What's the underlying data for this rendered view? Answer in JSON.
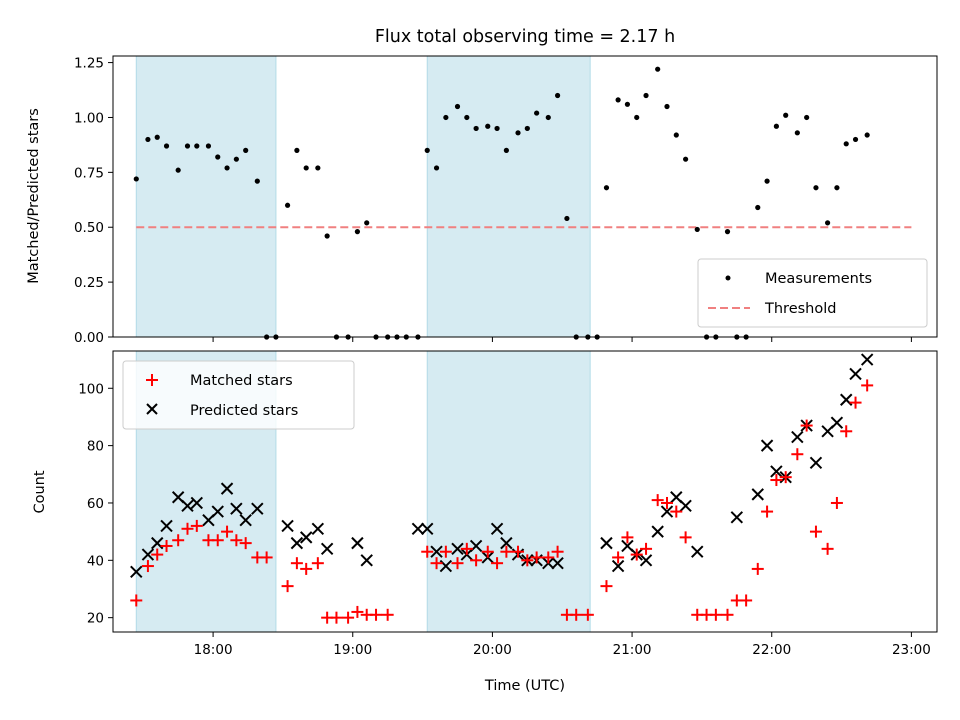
{
  "chart_data": [
    {
      "type": "scatter",
      "title": "Flux total observing time = 2.17 h",
      "xlabel": "",
      "ylabel": "Matched/Predicted stars",
      "xlim": [
        "17:17",
        "23:11"
      ],
      "ylim": [
        0,
        1.28
      ],
      "x_ticks": [
        "18:00",
        "19:00",
        "20:00",
        "21:00",
        "22:00",
        "23:00"
      ],
      "y_ticks": [
        "0.00",
        "0.25",
        "0.50",
        "0.75",
        "1.00",
        "1.25"
      ],
      "y_tick_values": [
        0,
        0.25,
        0.5,
        0.75,
        1.0,
        1.25
      ],
      "shaded_intervals": [
        [
          "17:27",
          "18:27"
        ],
        [
          "19:32",
          "20:42"
        ]
      ],
      "legend": {
        "position": "lower right",
        "entries": [
          "Measurements",
          "Threshold"
        ]
      },
      "series": [
        {
          "name": "Measurements",
          "marker": "point",
          "color": "#000000",
          "points": [
            [
              "17:27",
              0.72
            ],
            [
              "17:32",
              0.9
            ],
            [
              "17:36",
              0.91
            ],
            [
              "17:40",
              0.87
            ],
            [
              "17:45",
              0.76
            ],
            [
              "17:49",
              0.87
            ],
            [
              "17:53",
              0.87
            ],
            [
              "17:58",
              0.87
            ],
            [
              "18:02",
              0.82
            ],
            [
              "18:06",
              0.77
            ],
            [
              "18:10",
              0.81
            ],
            [
              "18:14",
              0.85
            ],
            [
              "18:19",
              0.71
            ],
            [
              "18:23",
              0.0
            ],
            [
              "18:27",
              0.0
            ],
            [
              "18:32",
              0.6
            ],
            [
              "18:36",
              0.85
            ],
            [
              "18:40",
              0.77
            ],
            [
              "18:45",
              0.77
            ],
            [
              "18:49",
              0.46
            ],
            [
              "18:53",
              0.0
            ],
            [
              "18:58",
              0.0
            ],
            [
              "19:02",
              0.48
            ],
            [
              "19:06",
              0.52
            ],
            [
              "19:10",
              0.0
            ],
            [
              "19:15",
              0.0
            ],
            [
              "19:19",
              0.0
            ],
            [
              "19:23",
              0.0
            ],
            [
              "19:28",
              0.0
            ],
            [
              "19:32",
              0.85
            ],
            [
              "19:36",
              0.77
            ],
            [
              "19:40",
              1.0
            ],
            [
              "19:45",
              1.05
            ],
            [
              "19:49",
              1.0
            ],
            [
              "19:53",
              0.95
            ],
            [
              "19:58",
              0.96
            ],
            [
              "20:02",
              0.95
            ],
            [
              "20:06",
              0.85
            ],
            [
              "20:11",
              0.93
            ],
            [
              "20:15",
              0.95
            ],
            [
              "20:19",
              1.02
            ],
            [
              "20:24",
              1.0
            ],
            [
              "20:28",
              1.1
            ],
            [
              "20:32",
              0.54
            ],
            [
              "20:36",
              0.0
            ],
            [
              "20:41",
              0.0
            ],
            [
              "20:45",
              0.0
            ],
            [
              "20:49",
              0.68
            ],
            [
              "20:54",
              1.08
            ],
            [
              "20:58",
              1.06
            ],
            [
              "21:02",
              1.0
            ],
            [
              "21:06",
              1.1
            ],
            [
              "21:11",
              1.22
            ],
            [
              "21:15",
              1.05
            ],
            [
              "21:19",
              0.92
            ],
            [
              "21:23",
              0.81
            ],
            [
              "21:28",
              0.49
            ],
            [
              "21:32",
              0.0
            ],
            [
              "21:36",
              0.0
            ],
            [
              "21:41",
              0.48
            ],
            [
              "21:45",
              0.0
            ],
            [
              "21:49",
              0.0
            ],
            [
              "21:54",
              0.59
            ],
            [
              "21:58",
              0.71
            ],
            [
              "22:02",
              0.96
            ],
            [
              "22:06",
              1.01
            ],
            [
              "22:11",
              0.93
            ],
            [
              "22:15",
              1.0
            ],
            [
              "22:19",
              0.68
            ],
            [
              "22:24",
              0.52
            ],
            [
              "22:28",
              0.68
            ],
            [
              "22:32",
              0.88
            ],
            [
              "22:36",
              0.9
            ],
            [
              "22:41",
              0.92
            ]
          ]
        },
        {
          "name": "Threshold",
          "marker": "dashed-line",
          "color": "#f08080",
          "points": [
            [
              "17:27",
              0.5
            ],
            [
              "23:00",
              0.5
            ]
          ]
        }
      ]
    },
    {
      "type": "scatter",
      "title": "",
      "xlabel": "Time (UTC)",
      "ylabel": "Count",
      "xlim": [
        "17:17",
        "23:11"
      ],
      "ylim": [
        15,
        113
      ],
      "x_ticks": [
        "18:00",
        "19:00",
        "20:00",
        "21:00",
        "22:00",
        "23:00"
      ],
      "y_ticks": [
        "20",
        "40",
        "60",
        "80",
        "100"
      ],
      "y_tick_values": [
        20,
        40,
        60,
        80,
        100
      ],
      "shaded_intervals": [
        [
          "17:27",
          "18:27"
        ],
        [
          "19:32",
          "20:42"
        ]
      ],
      "legend": {
        "position": "upper left",
        "entries": [
          "Matched stars",
          "Predicted stars"
        ]
      },
      "series": [
        {
          "name": "Matched stars",
          "marker": "plus",
          "color": "#ff0000",
          "points": [
            [
              "17:27",
              26
            ],
            [
              "17:32",
              38
            ],
            [
              "17:36",
              42
            ],
            [
              "17:40",
              45
            ],
            [
              "17:45",
              47
            ],
            [
              "17:49",
              51
            ],
            [
              "17:53",
              52
            ],
            [
              "17:58",
              47
            ],
            [
              "18:02",
              47
            ],
            [
              "18:06",
              50
            ],
            [
              "18:10",
              47
            ],
            [
              "18:14",
              46
            ],
            [
              "18:19",
              41
            ],
            [
              "18:23",
              41
            ],
            [
              "18:32",
              31
            ],
            [
              "18:36",
              39
            ],
            [
              "18:40",
              37
            ],
            [
              "18:45",
              39
            ],
            [
              "18:49",
              20
            ],
            [
              "18:53",
              20
            ],
            [
              "18:58",
              20
            ],
            [
              "19:02",
              22
            ],
            [
              "19:06",
              21
            ],
            [
              "19:10",
              21
            ],
            [
              "19:15",
              21
            ],
            [
              "19:32",
              43
            ],
            [
              "19:36",
              39
            ],
            [
              "19:40",
              43
            ],
            [
              "19:45",
              39
            ],
            [
              "19:49",
              44
            ],
            [
              "19:53",
              40
            ],
            [
              "19:58",
              43
            ],
            [
              "20:02",
              39
            ],
            [
              "20:06",
              43
            ],
            [
              "20:11",
              43
            ],
            [
              "20:15",
              40
            ],
            [
              "20:19",
              41
            ],
            [
              "20:24",
              41
            ],
            [
              "20:28",
              43
            ],
            [
              "20:32",
              21
            ],
            [
              "20:36",
              21
            ],
            [
              "20:41",
              21
            ],
            [
              "20:49",
              31
            ],
            [
              "20:54",
              41
            ],
            [
              "20:58",
              48
            ],
            [
              "21:02",
              42
            ],
            [
              "21:06",
              44
            ],
            [
              "21:11",
              61
            ],
            [
              "21:15",
              60
            ],
            [
              "21:19",
              57
            ],
            [
              "21:23",
              48
            ],
            [
              "21:28",
              21
            ],
            [
              "21:32",
              21
            ],
            [
              "21:36",
              21
            ],
            [
              "21:41",
              21
            ],
            [
              "21:45",
              26
            ],
            [
              "21:49",
              26
            ],
            [
              "21:54",
              37
            ],
            [
              "21:58",
              57
            ],
            [
              "22:02",
              68
            ],
            [
              "22:06",
              69
            ],
            [
              "22:11",
              77
            ],
            [
              "22:15",
              87
            ],
            [
              "22:19",
              50
            ],
            [
              "22:24",
              44
            ],
            [
              "22:28",
              60
            ],
            [
              "22:32",
              85
            ],
            [
              "22:36",
              95
            ],
            [
              "22:41",
              101
            ]
          ]
        },
        {
          "name": "Predicted stars",
          "marker": "x",
          "color": "#000000",
          "points": [
            [
              "17:27",
              36
            ],
            [
              "17:32",
              42
            ],
            [
              "17:36",
              46
            ],
            [
              "17:40",
              52
            ],
            [
              "17:45",
              62
            ],
            [
              "17:49",
              59
            ],
            [
              "17:53",
              60
            ],
            [
              "17:58",
              54
            ],
            [
              "18:02",
              57
            ],
            [
              "18:06",
              65
            ],
            [
              "18:10",
              58
            ],
            [
              "18:14",
              54
            ],
            [
              "18:19",
              58
            ],
            [
              "18:32",
              52
            ],
            [
              "18:36",
              46
            ],
            [
              "18:40",
              48
            ],
            [
              "18:45",
              51
            ],
            [
              "18:49",
              44
            ],
            [
              "19:02",
              46
            ],
            [
              "19:06",
              40
            ],
            [
              "19:28",
              51
            ],
            [
              "19:32",
              51
            ],
            [
              "19:36",
              43
            ],
            [
              "19:40",
              38
            ],
            [
              "19:45",
              44
            ],
            [
              "19:49",
              42
            ],
            [
              "19:53",
              45
            ],
            [
              "19:58",
              41
            ],
            [
              "20:02",
              51
            ],
            [
              "20:06",
              46
            ],
            [
              "20:11",
              42
            ],
            [
              "20:15",
              40
            ],
            [
              "20:19",
              40
            ],
            [
              "20:24",
              39
            ],
            [
              "20:28",
              39
            ],
            [
              "20:49",
              46
            ],
            [
              "20:54",
              38
            ],
            [
              "20:58",
              45
            ],
            [
              "21:02",
              42
            ],
            [
              "21:06",
              40
            ],
            [
              "21:11",
              50
            ],
            [
              "21:15",
              57
            ],
            [
              "21:19",
              62
            ],
            [
              "21:23",
              59
            ],
            [
              "21:28",
              43
            ],
            [
              "21:45",
              55
            ],
            [
              "21:54",
              63
            ],
            [
              "21:58",
              80
            ],
            [
              "22:02",
              71
            ],
            [
              "22:06",
              69
            ],
            [
              "22:11",
              83
            ],
            [
              "22:15",
              87
            ],
            [
              "22:19",
              74
            ],
            [
              "22:24",
              85
            ],
            [
              "22:28",
              88
            ],
            [
              "22:32",
              96
            ],
            [
              "22:36",
              105
            ],
            [
              "22:41",
              110
            ]
          ]
        }
      ]
    }
  ]
}
